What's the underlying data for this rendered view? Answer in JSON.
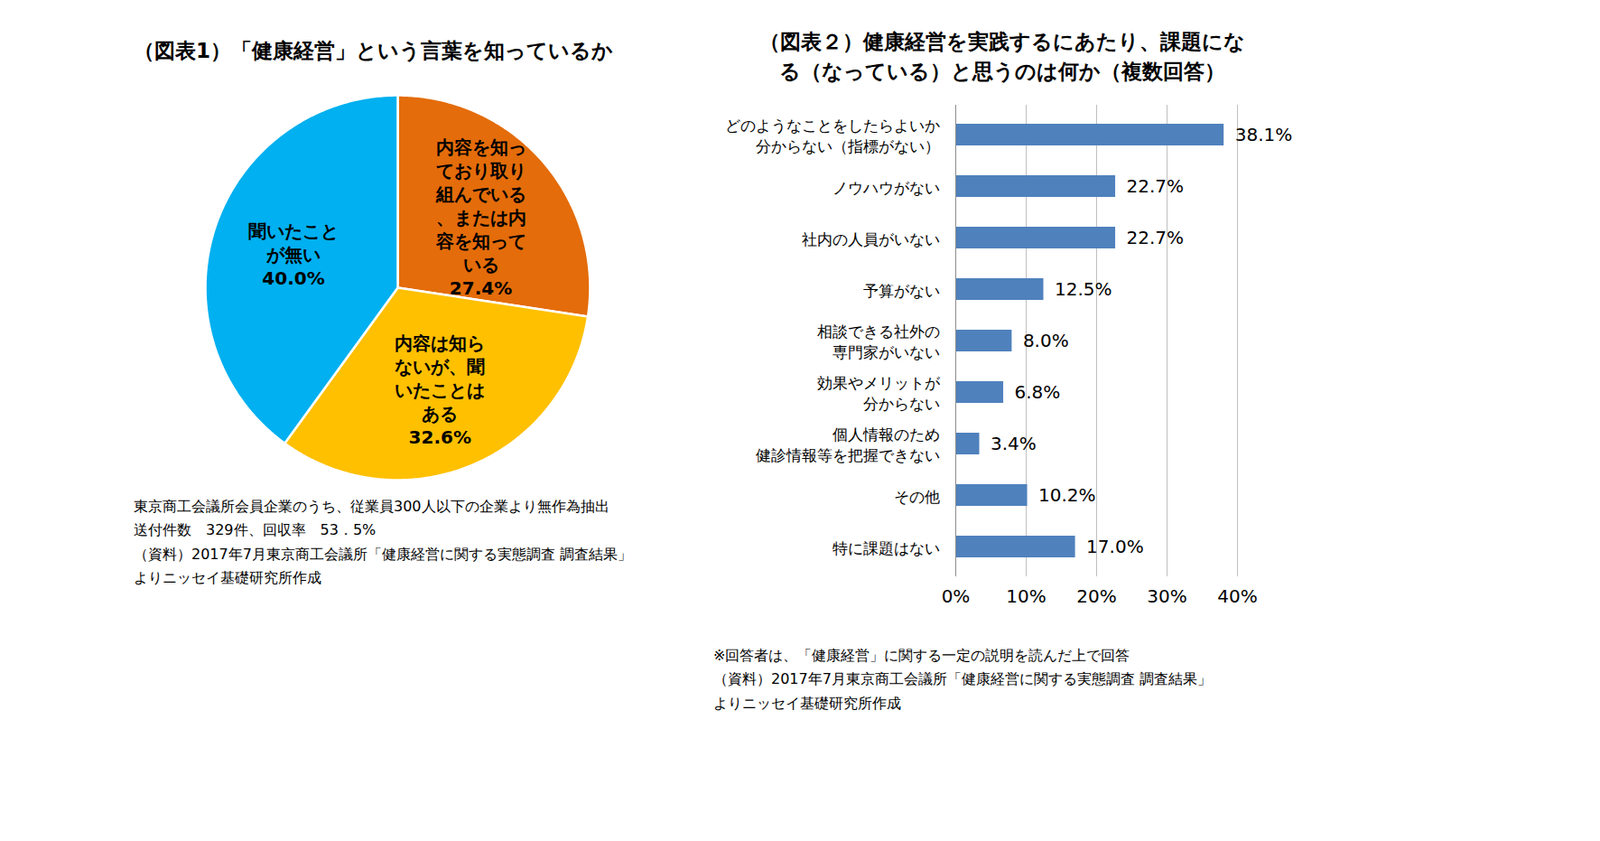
{
  "chart_data": [
    {
      "type": "pie",
      "title": "（図表1）「健康経営」という言葉を知っているか",
      "categories": [
        "内容を知っており取り組んでいる、または内容を知っている",
        "内容は知らないが、聞いたことはある",
        "聞いたことが無い"
      ],
      "values": [
        27.4,
        32.6,
        40.0
      ],
      "value_labels": [
        "27.4%",
        "32.6%",
        "40.0%"
      ],
      "colors": [
        "#E46C0A",
        "#FFC000",
        "#00B0F0"
      ],
      "data_labels": true,
      "annotations": [
        "東京商工会議所会員企業のうち、従業員300人以下の企業より無作為抽出",
        "送付件数　329件、回収率　53．5%",
        "（資料）2017年7月東京商工会議所「健康経営に関する実態調査 調査結果」",
        "よりニッセイ基礎研究所作成"
      ]
    },
    {
      "type": "bar",
      "orientation": "horizontal",
      "title": "（図表２）健康経営を実践するにあたり、課題になる（なっている）と思うのは何か（複数回答）",
      "categories": [
        "どのようなことをしたらよいか分からない（指標がない）",
        "ノウハウがない",
        "社内の人員がいない",
        "予算がない",
        "相談できる社外の専門家がいない",
        "効果やメリットが分からない",
        "個人情報のため健診情報等を把握できない",
        "その他",
        "特に課題はない"
      ],
      "values": [
        38.1,
        22.7,
        22.7,
        12.5,
        8.0,
        6.8,
        3.4,
        10.2,
        17.0
      ],
      "value_labels": [
        "38.1%",
        "22.7%",
        "22.7%",
        "12.5%",
        "8.0%",
        "6.8%",
        "3.4%",
        "10.2%",
        "17.0%"
      ],
      "color": "#4F81BD",
      "xlim": [
        0,
        40
      ],
      "xticks": [
        {
          "value": 0,
          "label": "0%"
        },
        {
          "value": 10,
          "label": "10%"
        },
        {
          "value": 20,
          "label": "20%"
        },
        {
          "value": 30,
          "label": "30%"
        },
        {
          "value": 40,
          "label": "40%"
        }
      ],
      "grid": true,
      "data_labels": true,
      "annotations": [
        "※回答者は、「健康経営」に関する一定の説明を読んだ上で回答",
        "（資料）2017年7月東京商工会議所「健康経営に関する実態調査 調査結果」",
        "よりニッセイ基礎研究所作成"
      ]
    }
  ]
}
